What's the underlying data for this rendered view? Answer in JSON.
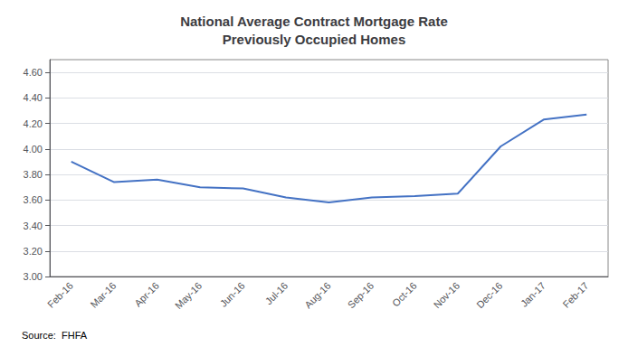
{
  "chart_data": {
    "type": "line",
    "title": "National Average Contract Mortgage Rate\nPreviously Occupied Homes",
    "categories": [
      "Feb-16",
      "Mar-16",
      "Apr-16",
      "May-16",
      "Jun-16",
      "Jul-16",
      "Aug-16",
      "Sep-16",
      "Oct-16",
      "Nov-16",
      "Dec-16",
      "Jan-17",
      "Feb-17"
    ],
    "values": [
      3.9,
      3.74,
      3.76,
      3.7,
      3.69,
      3.62,
      3.58,
      3.62,
      3.63,
      3.65,
      4.02,
      4.23,
      4.27
    ],
    "color": "#4472C4",
    "ylim": [
      3.0,
      4.7
    ],
    "yticks": [
      {
        "value": 3.0,
        "label": "3.00"
      },
      {
        "value": 3.2,
        "label": "3.20"
      },
      {
        "value": 3.4,
        "label": "3.40"
      },
      {
        "value": 3.6,
        "label": "3.60"
      },
      {
        "value": 3.8,
        "label": "3.80"
      },
      {
        "value": 4.0,
        "label": "4.00"
      },
      {
        "value": 4.2,
        "label": "4.20"
      },
      {
        "value": 4.4,
        "label": "4.40"
      },
      {
        "value": 4.6,
        "label": "4.60"
      }
    ],
    "grid": true,
    "source": "Source:  FHFA"
  }
}
